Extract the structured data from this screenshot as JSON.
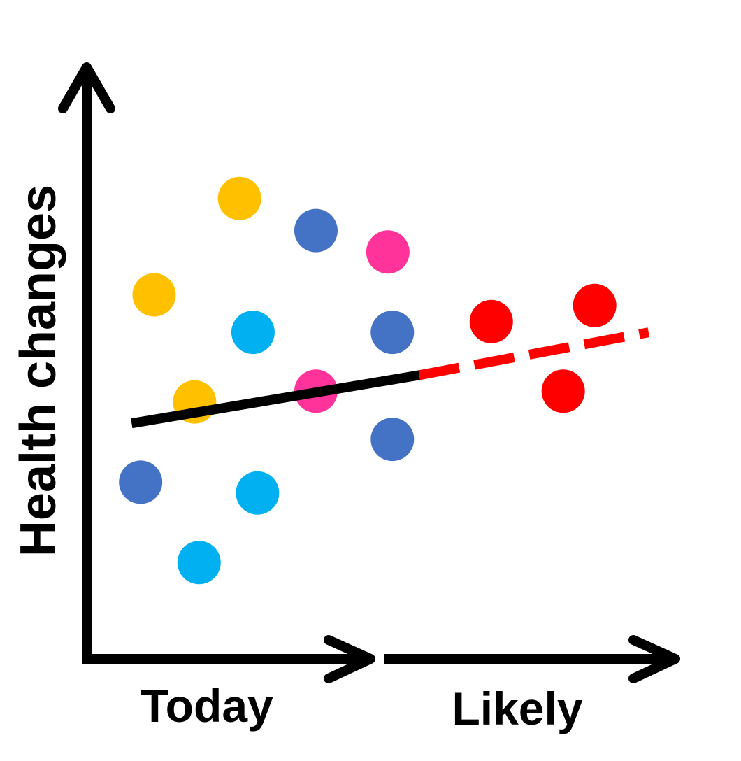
{
  "chart_data": {
    "type": "scatter",
    "title": "",
    "ylabel": "Health changes",
    "xlabels": {
      "left": "Today",
      "right": "Likely"
    },
    "grid": false,
    "legend": "none",
    "points": [
      {
        "x": 3.4,
        "y": 8.6,
        "color": "#FFC000"
      },
      {
        "x": 1.5,
        "y": 6.8,
        "color": "#FFC000"
      },
      {
        "x": 2.4,
        "y": 4.8,
        "color": "#FFC000"
      },
      {
        "x": 5.1,
        "y": 8.0,
        "color": "#4472C4"
      },
      {
        "x": 6.8,
        "y": 6.1,
        "color": "#4472C4"
      },
      {
        "x": 6.8,
        "y": 4.1,
        "color": "#4472C4"
      },
      {
        "x": 1.2,
        "y": 3.3,
        "color": "#4472C4"
      },
      {
        "x": 3.7,
        "y": 6.1,
        "color": "#00B0F0"
      },
      {
        "x": 3.8,
        "y": 3.1,
        "color": "#00B0F0"
      },
      {
        "x": 2.5,
        "y": 1.8,
        "color": "#00B0F0"
      },
      {
        "x": 6.7,
        "y": 7.6,
        "color": "#FF3399"
      },
      {
        "x": 5.1,
        "y": 5.0,
        "color": "#FF3399"
      },
      {
        "x": 9.0,
        "y": 6.3,
        "color": "#FF0000"
      },
      {
        "x": 11.3,
        "y": 6.6,
        "color": "#FF0000"
      },
      {
        "x": 10.6,
        "y": 5.0,
        "color": "#FF0000"
      }
    ],
    "lines": [
      {
        "kind": "trend",
        "style": "solid",
        "color": "#000000",
        "x": [
          1.0,
          7.4
        ],
        "y": [
          4.4,
          5.3
        ]
      },
      {
        "kind": "projection",
        "style": "dashed",
        "color": "#FF0000",
        "x": [
          7.4,
          12.5
        ],
        "y": [
          5.3,
          6.1
        ]
      }
    ]
  }
}
